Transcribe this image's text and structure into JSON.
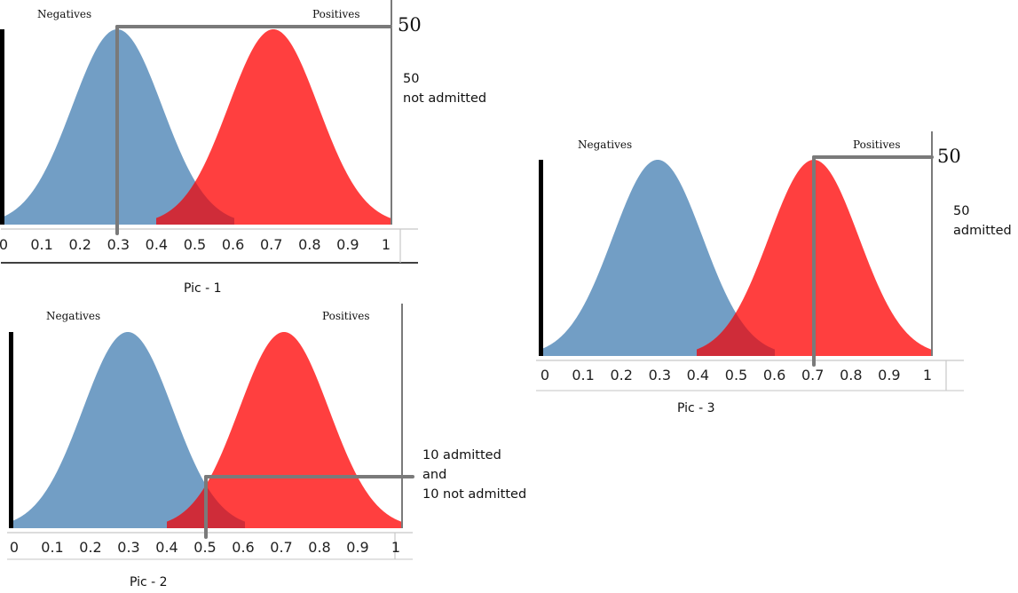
{
  "chart_data": [
    {
      "type": "area",
      "caption": "Pic - 1",
      "legend_left": "Negatives",
      "legend_right": "Positives",
      "x_ticks": [
        "0",
        "0.1",
        "0.2",
        "0.3",
        "0.4",
        "0.5",
        "0.6",
        "0.7",
        "0.8",
        "0.9",
        "1"
      ],
      "xlim": [
        0,
        1
      ],
      "series": [
        {
          "name": "Negatives",
          "mean": 0.3,
          "color": "#729ec5"
        },
        {
          "name": "Positives",
          "mean": 0.7,
          "color": "#ff3f3f"
        }
      ],
      "overlap_color": "#cf2c39",
      "threshold": 0.3,
      "threshold_count": "50",
      "note": [
        "50",
        "not admitted"
      ]
    },
    {
      "type": "area",
      "caption": "Pic -  2",
      "legend_left": "Negatives",
      "legend_right": "Positives",
      "x_ticks": [
        "0",
        "0.1",
        "0.2",
        "0.3",
        "0.4",
        "0.5",
        "0.6",
        "0.7",
        "0.8",
        "0.9",
        "1"
      ],
      "xlim": [
        0,
        1
      ],
      "series": [
        {
          "name": "Negatives",
          "mean": 0.3,
          "color": "#729ec5"
        },
        {
          "name": "Positives",
          "mean": 0.7,
          "color": "#ff3f3f"
        }
      ],
      "overlap_color": "#cf2c39",
      "threshold": 0.5,
      "note": [
        "10 admitted",
        "and",
        "10 not admitted"
      ]
    },
    {
      "type": "area",
      "caption": "Pic  - 3",
      "legend_left": "Negatives",
      "legend_right": "Positives",
      "x_ticks": [
        "0",
        "0.1",
        "0.2",
        "0.3",
        "0.4",
        "0.5",
        "0.6",
        "0.7",
        "0.8",
        "0.9",
        "1"
      ],
      "xlim": [
        0,
        1
      ],
      "series": [
        {
          "name": "Negatives",
          "mean": 0.3,
          "color": "#729ec5"
        },
        {
          "name": "Positives",
          "mean": 0.7,
          "color": "#ff3f3f"
        }
      ],
      "overlap_color": "#cf2c39",
      "threshold": 0.7,
      "threshold_count": "50",
      "note": [
        "50",
        "admitted"
      ]
    }
  ]
}
